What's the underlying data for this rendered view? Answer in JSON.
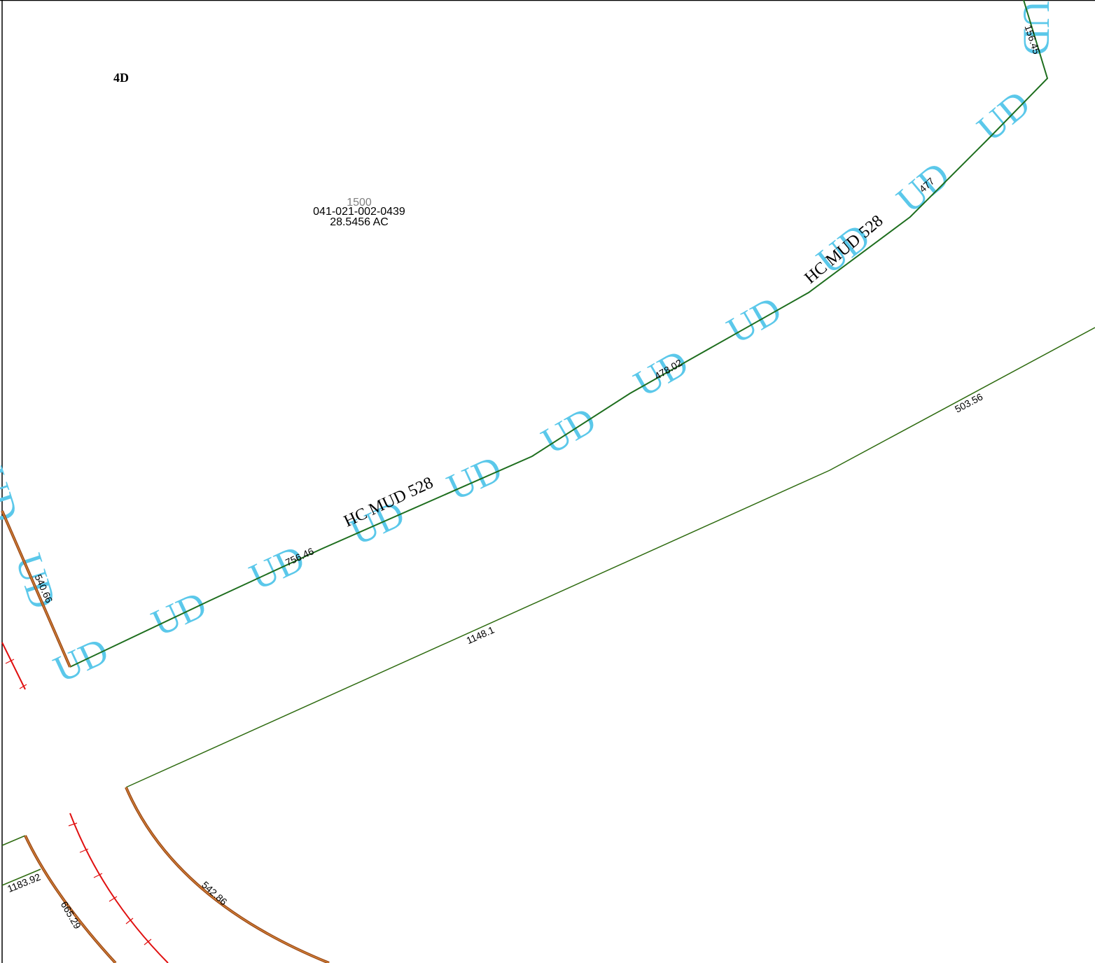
{
  "map": {
    "zone_label": "4D",
    "parcel": {
      "address": "1500",
      "account": "041-021-002-0439",
      "acreage": "28.5456 AC"
    },
    "district_label_1": "HC MUD 528",
    "district_label_2": "HC MUD 528",
    "ud_symbol": "UD",
    "dimensions": {
      "d_156_45": "156.45",
      "d_477": "477",
      "d_478_02": "478.02",
      "d_756_46": "756.46",
      "d_540_66": "540.66",
      "d_503_56": "503.56",
      "d_1148_1": "1148.1",
      "d_1183_92": "1183.92",
      "d_665_29": "665.29",
      "d_542_86": "542.86"
    },
    "colors": {
      "boundary_green": "#1e6e1e",
      "parcel_green": "#2e6b10",
      "ud_cyan": "#5bc8ea",
      "railroad_red": "#e01010",
      "road_brown": "#9c4a1a",
      "road_orange": "#d98a3a",
      "text_gray": "#808080"
    }
  }
}
